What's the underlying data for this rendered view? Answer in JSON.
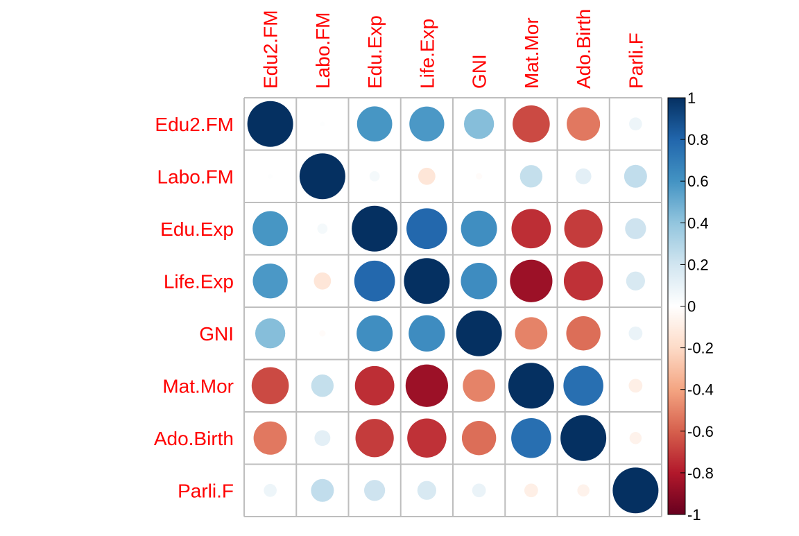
{
  "chart_data": {
    "type": "heatmap",
    "variables": [
      "Edu2.FM",
      "Labo.FM",
      "Edu.Exp",
      "Life.Exp",
      "GNI",
      "Mat.Mor",
      "Ado.Birth",
      "Parli.F"
    ],
    "matrix": [
      [
        1.0,
        0.01,
        0.59,
        0.58,
        0.43,
        -0.66,
        -0.53,
        0.08
      ],
      [
        0.01,
        1.0,
        0.05,
        -0.14,
        -0.02,
        0.24,
        0.12,
        0.25
      ],
      [
        0.59,
        0.05,
        1.0,
        0.79,
        0.62,
        -0.74,
        -0.7,
        0.21
      ],
      [
        0.58,
        -0.14,
        0.79,
        1.0,
        0.63,
        -0.86,
        -0.73,
        0.17
      ],
      [
        0.43,
        -0.02,
        0.62,
        0.63,
        1.0,
        -0.5,
        -0.56,
        0.09
      ],
      [
        -0.66,
        0.24,
        -0.74,
        -0.86,
        -0.5,
        1.0,
        0.76,
        -0.09
      ],
      [
        -0.53,
        0.12,
        -0.7,
        -0.73,
        -0.56,
        0.76,
        1.0,
        -0.07
      ],
      [
        0.08,
        0.25,
        0.21,
        0.17,
        0.09,
        -0.09,
        -0.07,
        1.0
      ]
    ],
    "color_range": [
      -1,
      1
    ],
    "colorbar_ticks": [
      "1",
      "0.8",
      "0.6",
      "0.4",
      "0.2",
      "0",
      "-0.2",
      "-0.4",
      "-0.6",
      "-0.8",
      "-1"
    ],
    "label_color": "#ff0000",
    "grid_color": "#bebebe",
    "palette": [
      "#67001f",
      "#b2182b",
      "#d6604d",
      "#f4a582",
      "#fddbc7",
      "#ffffff",
      "#d1e5f0",
      "#92c5de",
      "#4393c3",
      "#2166ac",
      "#053061"
    ]
  }
}
